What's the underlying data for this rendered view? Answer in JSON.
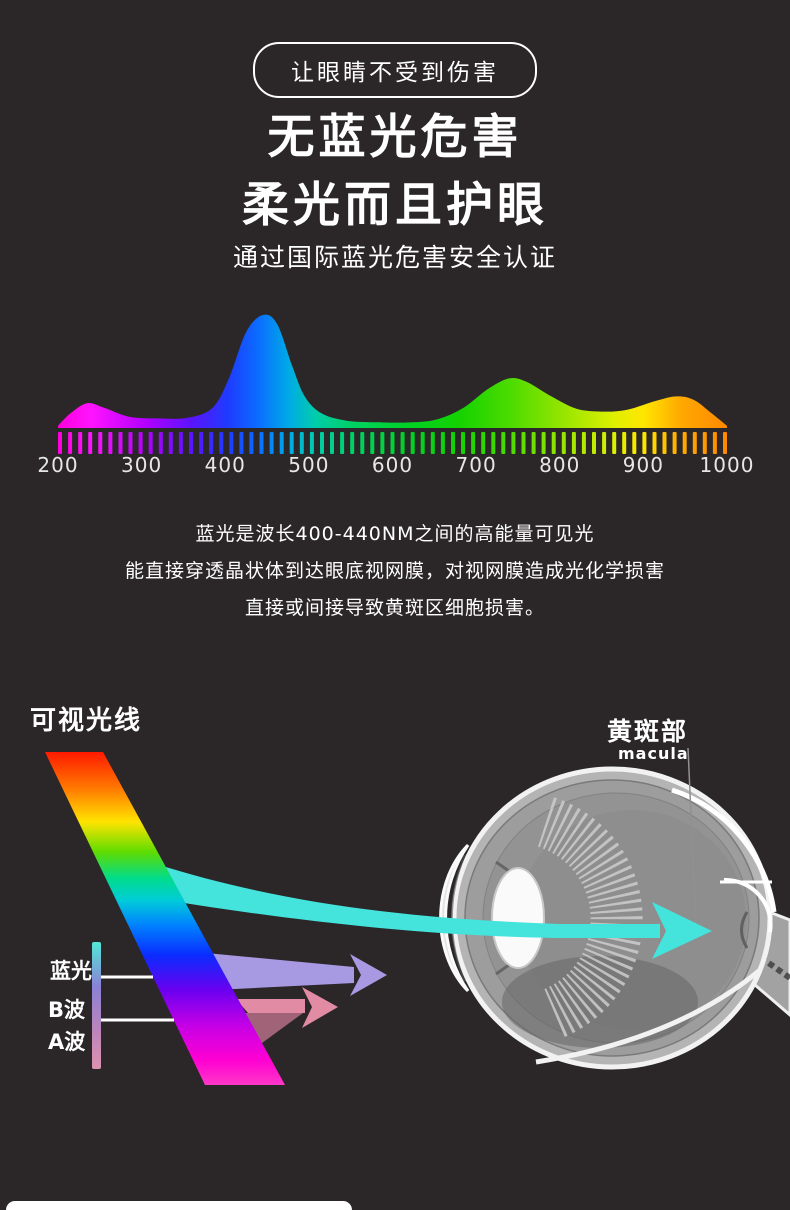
{
  "page": {
    "background": "#2b2728",
    "text_color": "#ffffff"
  },
  "header": {
    "badge_label": "让眼睛不受到伤害",
    "title_line1": "无蓝光危害",
    "title_line2": "柔光而且护眼",
    "subtitle": "通过国际蓝光危害安全认证"
  },
  "description": {
    "line1": "蓝光是波长400-440NM之间的高能量可见光",
    "line2": "能直接穿透晶状体到达眼底视网膜，对视网膜造成光化学损害",
    "line3": "直接或间接导致黄斑区细胞损害。"
  },
  "chart_data": {
    "type": "area",
    "x_ticks": [
      200,
      300,
      400,
      500,
      600,
      700,
      800,
      900,
      1000
    ],
    "x_range": [
      200,
      1000
    ],
    "ylim": [
      0,
      1
    ],
    "xlabel": "",
    "ylabel": "",
    "grid": false,
    "x": [
      200,
      215,
      235,
      255,
      285,
      320,
      355,
      385,
      405,
      425,
      445,
      462,
      480,
      495,
      515,
      545,
      585,
      625,
      655,
      685,
      715,
      740,
      760,
      790,
      820,
      850,
      880,
      915,
      940,
      960,
      980,
      1000
    ],
    "y": [
      0.02,
      0.13,
      0.22,
      0.18,
      0.1,
      0.085,
      0.09,
      0.18,
      0.45,
      0.85,
      1.0,
      0.92,
      0.55,
      0.28,
      0.13,
      0.065,
      0.05,
      0.05,
      0.08,
      0.18,
      0.35,
      0.44,
      0.41,
      0.28,
      0.17,
      0.145,
      0.16,
      0.24,
      0.28,
      0.25,
      0.14,
      0.02
    ]
  },
  "gradients": {
    "spectrum": [
      [
        0,
        "#ff00dc"
      ],
      [
        0.05,
        "#ff14ff"
      ],
      [
        0.13,
        "#b400ff"
      ],
      [
        0.2,
        "#5a14ff"
      ],
      [
        0.255,
        "#1e3cff"
      ],
      [
        0.3,
        "#0a6eff"
      ],
      [
        0.345,
        "#00aae6"
      ],
      [
        0.385,
        "#00cdaa"
      ],
      [
        0.44,
        "#00d264"
      ],
      [
        0.52,
        "#00d228"
      ],
      [
        0.6,
        "#14d200"
      ],
      [
        0.68,
        "#50dc00"
      ],
      [
        0.76,
        "#9be600"
      ],
      [
        0.83,
        "#ddf000"
      ],
      [
        0.875,
        "#ffe600"
      ],
      [
        0.93,
        "#ffaa00"
      ],
      [
        1,
        "#ff8800"
      ]
    ],
    "beam": [
      [
        0,
        "#ff1a00"
      ],
      [
        0.11,
        "#ff7a00"
      ],
      [
        0.21,
        "#ffe400"
      ],
      [
        0.3,
        "#5fdc00"
      ],
      [
        0.38,
        "#00dc8c"
      ],
      [
        0.445,
        "#00ccd8"
      ],
      [
        0.52,
        "#0082ff"
      ],
      [
        0.61,
        "#0a2cff"
      ],
      [
        0.715,
        "#6a00f0"
      ],
      [
        0.82,
        "#c400e6"
      ],
      [
        0.925,
        "#ff00d2"
      ],
      [
        1,
        "#ff38c8"
      ]
    ],
    "bar": [
      [
        0,
        "#52e8d8"
      ],
      [
        0.35,
        "#8a82d6"
      ],
      [
        0.7,
        "#bc84bc"
      ],
      [
        1,
        "#de93b0"
      ]
    ]
  },
  "diagram": {
    "visible_light_label": "可视光线",
    "macula_label": "黄斑部",
    "macula_sublabel": "macula",
    "ray_labels": {
      "blue": "蓝光",
      "b_wave": "B波",
      "a_wave": "A波"
    },
    "colors": {
      "blue_ray": "#44e3dc",
      "b_wave": "#a79ae3",
      "a_wave": "#e18ba4",
      "a_wave_shadow": "#b56f86",
      "pointer_line": "#909090"
    }
  }
}
